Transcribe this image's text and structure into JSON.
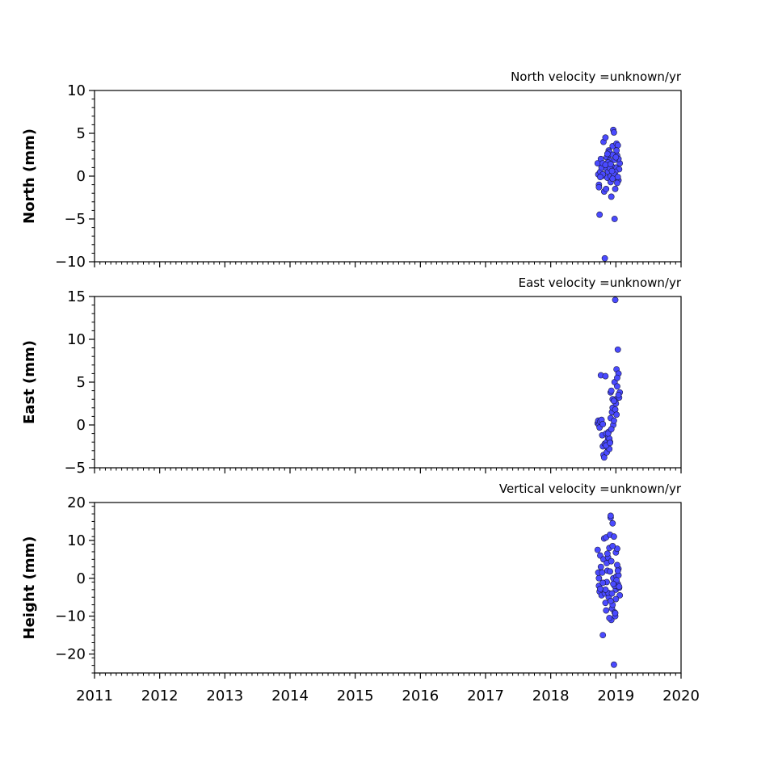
{
  "colors": {
    "marker_fill": "#4a4aff",
    "marker_edge": "#1a1a40",
    "axis": "#000000",
    "background": "#ffffff"
  },
  "chart_data": [
    {
      "type": "scatter",
      "title": "North velocity =unknown/yr",
      "xlabel": "",
      "ylabel": "North (mm)",
      "xlim": [
        2011,
        2020
      ],
      "ylim": [
        -10,
        10
      ],
      "xticks": [
        2011,
        2012,
        2013,
        2014,
        2015,
        2016,
        2017,
        2018,
        2019,
        2020
      ],
      "yticks": [
        -10,
        -5,
        0,
        5,
        10
      ],
      "show_xtick_labels": false,
      "grid": false,
      "series": [
        {
          "x": [
            2018.72,
            2018.73,
            2018.74,
            2018.74,
            2018.75,
            2018.76,
            2018.77,
            2018.78,
            2018.79,
            2018.8,
            2018.81,
            2018.82,
            2018.83,
            2018.84,
            2018.85,
            2018.86,
            2018.86,
            2018.87,
            2018.88,
            2018.89,
            2018.9,
            2018.91,
            2018.92,
            2018.92,
            2018.93,
            2018.94,
            2018.95,
            2018.96,
            2018.97,
            2018.98,
            2018.99,
            2019.0,
            2019.0,
            2019.01,
            2019.02,
            2019.03,
            2019.04,
            2019.05,
            2019.06,
            2018.9,
            2018.95,
            2018.85,
            2018.99,
            2019.02,
            2018.88,
            2018.93,
            2018.97,
            2019.04,
            2018.8,
            2018.91,
            2019.01,
            2018.95,
            2018.84,
            2018.87,
            2018.98,
            2019.03,
            2018.76,
            2018.94,
            2019.0,
            2018.92
          ],
          "y": [
            1.5,
            0.2,
            -1.0,
            -1.3,
            -4.5,
            0.5,
            2.0,
            1.0,
            0.0,
            1.5,
            4.0,
            -1.8,
            -9.6,
            4.5,
            1.2,
            0.8,
            2.2,
            -0.2,
            0.5,
            3.0,
            1.8,
            2.5,
            -0.7,
            0.0,
            -2.4,
            1.0,
            3.5,
            5.4,
            5.1,
            -5.0,
            -1.5,
            2.0,
            1.0,
            3.8,
            2.4,
            3.6,
            -0.5,
            0.8,
            1.5,
            2.8,
            2.5,
            -1.5,
            0.5,
            -0.8,
            1.6,
            1.2,
            0.2,
            2.0,
            0.2,
            0.9,
            3.0,
            -0.3,
            1.3,
            2.6,
            1.9,
            -0.1,
            -0.1,
            0.6,
            2.2,
            1.4
          ]
        }
      ]
    },
    {
      "type": "scatter",
      "title": "East velocity =unknown/yr",
      "xlabel": "",
      "ylabel": "East (mm)",
      "xlim": [
        2011,
        2020
      ],
      "ylim": [
        -5,
        15
      ],
      "xticks": [
        2011,
        2012,
        2013,
        2014,
        2015,
        2016,
        2017,
        2018,
        2019,
        2020
      ],
      "yticks": [
        -5,
        0,
        5,
        10,
        15
      ],
      "show_xtick_labels": false,
      "grid": false,
      "series": [
        {
          "x": [
            2018.72,
            2018.73,
            2018.74,
            2018.75,
            2018.76,
            2018.77,
            2018.78,
            2018.79,
            2018.8,
            2018.81,
            2018.82,
            2018.83,
            2018.84,
            2018.85,
            2018.86,
            2018.86,
            2018.87,
            2018.88,
            2018.89,
            2018.9,
            2018.91,
            2018.92,
            2018.92,
            2018.93,
            2018.94,
            2018.95,
            2018.96,
            2018.97,
            2018.98,
            2018.99,
            2019.0,
            2019.0,
            2019.01,
            2019.02,
            2019.03,
            2019.04,
            2019.05,
            2019.06,
            2018.9,
            2018.95,
            2018.85,
            2018.99,
            2019.02,
            2018.88,
            2018.93,
            2018.97,
            2019.04,
            2018.8,
            2018.91,
            2019.01
          ],
          "y": [
            0.2,
            0.5,
            0.0,
            -0.3,
            0.4,
            5.8,
            0.6,
            -1.2,
            -2.5,
            -3.5,
            -3.8,
            -2.2,
            5.7,
            -1.0,
            -2.0,
            -3.2,
            -2.6,
            -1.5,
            -0.8,
            -2.8,
            -2.0,
            0.8,
            3.8,
            4.0,
            1.5,
            2.0,
            0.0,
            0.5,
            5.0,
            14.6,
            3.0,
            2.5,
            6.5,
            4.5,
            8.8,
            6.0,
            3.2,
            3.8,
            -1.6,
            3.0,
            -2.4,
            1.8,
            5.5,
            -1.0,
            -0.5,
            2.8,
            3.5,
            0.1,
            -2.1,
            1.2
          ]
        }
      ]
    },
    {
      "type": "scatter",
      "title": "Vertical velocity =unknown/yr",
      "xlabel": "",
      "ylabel": "Height (mm)",
      "xlim": [
        2011,
        2020
      ],
      "ylim": [
        -25,
        20
      ],
      "xticks": [
        2011,
        2012,
        2013,
        2014,
        2015,
        2016,
        2017,
        2018,
        2019,
        2020
      ],
      "yticks": [
        -20,
        -10,
        0,
        10,
        20
      ],
      "show_xtick_labels": true,
      "grid": false,
      "series": [
        {
          "x": [
            2018.72,
            2018.73,
            2018.74,
            2018.74,
            2018.75,
            2018.76,
            2018.77,
            2018.78,
            2018.79,
            2018.8,
            2018.81,
            2018.82,
            2018.83,
            2018.84,
            2018.85,
            2018.86,
            2018.86,
            2018.87,
            2018.88,
            2018.89,
            2018.9,
            2018.91,
            2018.92,
            2018.92,
            2018.93,
            2018.94,
            2018.95,
            2018.96,
            2018.97,
            2018.98,
            2018.99,
            2019.0,
            2019.0,
            2019.01,
            2019.02,
            2019.03,
            2019.04,
            2019.05,
            2019.06,
            2018.9,
            2018.95,
            2018.85,
            2018.99,
            2019.02,
            2018.88,
            2018.93,
            2018.97,
            2019.04,
            2018.8,
            2018.91,
            2019.01,
            2018.95,
            2018.84,
            2018.87,
            2018.98,
            2019.03,
            2018.76,
            2018.94,
            2019.0,
            2018.92,
            2018.96,
            2019.05
          ],
          "y": [
            7.5,
            1.5,
            -2.0,
            0.0,
            -3.5,
            6.0,
            3.0,
            -4.5,
            1.5,
            -15.0,
            5.0,
            10.5,
            -4.0,
            -6.5,
            10.8,
            4.0,
            -1.0,
            2.0,
            5.5,
            -5.0,
            8.0,
            11.5,
            16.0,
            16.5,
            -11.0,
            -8.0,
            14.5,
            0.0,
            -22.8,
            -9.0,
            -10.0,
            6.8,
            -3.0,
            0.5,
            7.8,
            -1.5,
            2.5,
            -2.5,
            -4.5,
            -10.5,
            -7.0,
            -8.5,
            -9.2,
            3.5,
            -3.8,
            4.5,
            11.0,
            0.8,
            -1.2,
            1.8,
            -0.5,
            8.5,
            -3.0,
            6.5,
            -2.0,
            2.0,
            -2.8,
            -4.0,
            -5.5,
            -6.0,
            -1.5,
            -2.2
          ]
        }
      ]
    }
  ]
}
